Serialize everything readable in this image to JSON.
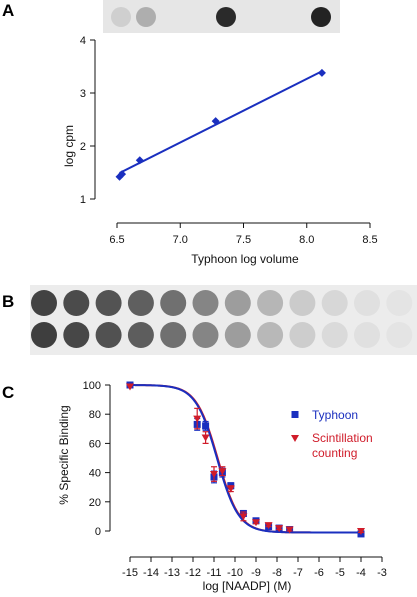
{
  "panels": {
    "a": {
      "letter": "A"
    },
    "b": {
      "letter": "B"
    },
    "c": {
      "letter": "C"
    }
  },
  "colors": {
    "blue": "#1a2fbf",
    "red": "#d01c2a",
    "axis": "#111111"
  },
  "blot_a": {
    "spot_intensities": [
      0.12,
      0.28,
      0.0,
      0.0,
      0.92,
      0.0,
      0.0,
      0.95
    ]
  },
  "blot_b": {
    "rows": [
      [
        0.8,
        0.76,
        0.72,
        0.66,
        0.58,
        0.48,
        0.36,
        0.24,
        0.14,
        0.08,
        0.04,
        0.02
      ],
      [
        0.82,
        0.78,
        0.73,
        0.67,
        0.58,
        0.48,
        0.36,
        0.23,
        0.13,
        0.07,
        0.04,
        0.02
      ]
    ]
  },
  "chart_data": [
    {
      "panel": "A",
      "type": "scatter",
      "xlabel": "Typhoon log volume",
      "ylabel": "log cpm",
      "xlim": [
        6.5,
        8.5
      ],
      "ylim": [
        1,
        4
      ],
      "xticks": [
        "6.5",
        "7.0",
        "7.5",
        "8.0",
        "8.5"
      ],
      "yticks": [
        "1",
        "2",
        "3",
        "4"
      ],
      "grid": false,
      "series": [
        {
          "points": [
            [
              6.52,
              1.42
            ],
            [
              6.54,
              1.47
            ],
            [
              6.68,
              1.73
            ],
            [
              7.28,
              2.47
            ],
            [
              8.12,
              3.38
            ]
          ]
        }
      ],
      "fit_line": [
        [
          6.52,
          1.49
        ],
        [
          8.12,
          3.41
        ]
      ]
    },
    {
      "panel": "C",
      "type": "line",
      "xlabel": "log [NAADP] (M)",
      "ylabel": "% Specific Binding",
      "xlim": [
        -15,
        -3
      ],
      "ylim": [
        0,
        100
      ],
      "xticks": [
        "-15",
        "-14",
        "-13",
        "-12",
        "-11",
        "-10",
        "-9",
        "-8",
        "-7",
        "-6",
        "-5",
        "-4",
        "-3"
      ],
      "yticks": [
        "0",
        "20",
        "40",
        "60",
        "80",
        "100"
      ],
      "legend_position": "right",
      "series": [
        {
          "name": "Typhoon",
          "marker": "square",
          "points": [
            [
              -15,
              100
            ],
            [
              -11.8,
              73
            ],
            [
              -11.4,
              72
            ],
            [
              -11,
              37
            ],
            [
              -10.6,
              40
            ],
            [
              -10.2,
              31
            ],
            [
              -9.6,
              12
            ],
            [
              -9,
              7
            ],
            [
              -8.4,
              3
            ],
            [
              -7.9,
              2
            ],
            [
              -7.4,
              1
            ],
            [
              -4,
              -2
            ]
          ],
          "errors": [
            0,
            4,
            3,
            4,
            3,
            2,
            2,
            1,
            1,
            1,
            1,
            1
          ]
        },
        {
          "name": "Scintillation counting",
          "marker": "triangle",
          "points": [
            [
              -15,
              99
            ],
            [
              -11.8,
              77
            ],
            [
              -11.4,
              64
            ],
            [
              -11,
              39
            ],
            [
              -10.6,
              41
            ],
            [
              -10.2,
              29
            ],
            [
              -9.6,
              10
            ],
            [
              -9,
              6
            ],
            [
              -8.4,
              4
            ],
            [
              -7.9,
              2
            ],
            [
              -7.4,
              1
            ],
            [
              -4,
              0
            ]
          ],
          "errors": [
            0,
            7,
            4,
            5,
            3,
            2,
            3,
            1,
            1,
            1,
            1,
            1
          ]
        }
      ],
      "fit": {
        "top": 100,
        "bottom": -1,
        "log_ic50": -10.85,
        "hill_slope": -0.85
      }
    }
  ]
}
